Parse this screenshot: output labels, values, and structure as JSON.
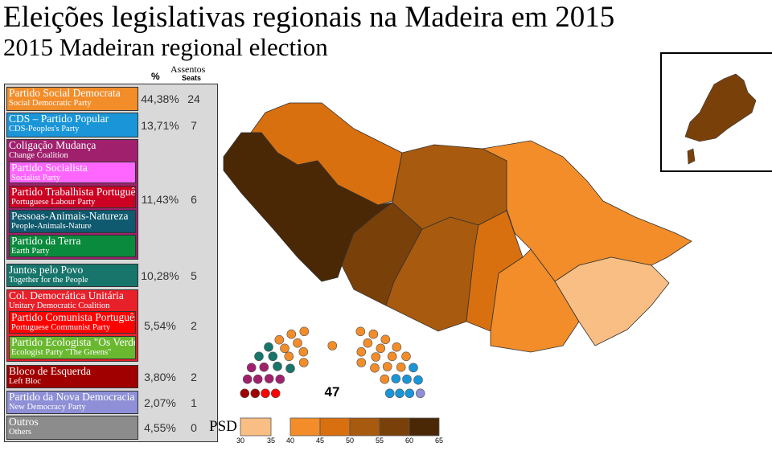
{
  "title_pt": "Eleições legislativas regionais na Madeira em 2015",
  "title_en": "2015 Madeiran regional election",
  "headers": {
    "percent": "%",
    "seats_pt": "Assentos",
    "seats_en": "Seats"
  },
  "parties": [
    {
      "name": "Partido Social Democrata",
      "en": "Social Democratic Party",
      "color": "#f28d2a",
      "pct": "44,38%",
      "seats": "24"
    },
    {
      "name": "CDS – Partido Popular",
      "en": "CDS-Peoples's Party",
      "color": "#1a96d8",
      "pct": "13,71%",
      "seats": "7"
    },
    {
      "name": "Coligação Mudança",
      "en": "Change Coalition",
      "color": "#a0206e",
      "pct": "11,43%",
      "seats": "6",
      "members": [
        {
          "name": "Partido Socialista",
          "en": "Socialist Party",
          "color": "#ff66ff"
        },
        {
          "name": "Partido Trabalhista Português",
          "en": "Portuguese Labour Party",
          "color": "#cc0022"
        },
        {
          "name": "Pessoas-Animais-Natureza",
          "en": "People-Animals-Nature",
          "color": "#0f5a6e"
        },
        {
          "name": "Partido da Terra",
          "en": "Earth Party",
          "color": "#0a8a3c"
        }
      ]
    },
    {
      "name": "Juntos pelo Povo",
      "en": "Together for the People",
      "color": "#17756b",
      "pct": "10,28%",
      "seats": "5"
    },
    {
      "name": "Col. Democrática Unitária",
      "en": "Unitary Democratic Coalition",
      "color": "#e8202a",
      "pct": "5,54%",
      "seats": "2",
      "members": [
        {
          "name": "Partido Comunista Português",
          "en": "Portuguese Communist Party",
          "color": "#ff0000"
        },
        {
          "name": "Partido Ecologista \"Os Verdes\"",
          "en": "Ecologist Party \"The Greens\"",
          "color": "#6ab82f"
        }
      ]
    },
    {
      "name": "Bloco de Esquerda",
      "en": "Left Bloc",
      "color": "#a00000",
      "pct": "3,80%",
      "seats": "2"
    },
    {
      "name": "Partido da Nova Democracia",
      "en": "New Democracy Party",
      "color": "#8e8fd6",
      "pct": "2,07%",
      "seats": "1"
    },
    {
      "name": "Outros",
      "en": "Others",
      "color": "#8c8c8c",
      "pct": "4,55%",
      "seats": "0"
    }
  ],
  "parliament": {
    "total": "47",
    "seat_color_order": [
      "PSD",
      "CDS",
      "Mudança",
      "JPP",
      "CDU",
      "BE",
      "PND"
    ]
  },
  "legend": {
    "label": "PSD",
    "bins": [
      {
        "from": 30,
        "to": 35,
        "color": "#f9be83"
      },
      {
        "from": 40,
        "to": 45,
        "color": "#f28d2a"
      },
      {
        "from": 45,
        "to": 50,
        "color": "#d9700f"
      },
      {
        "from": 50,
        "to": 55,
        "color": "#a85a0f"
      },
      {
        "from": 55,
        "to": 60,
        "color": "#7a400a"
      },
      {
        "from": 60,
        "to": 65,
        "color": "#4a2806"
      }
    ],
    "ticks": [
      "30",
      "35",
      "40",
      "45",
      "50",
      "55",
      "60",
      "65"
    ]
  }
}
